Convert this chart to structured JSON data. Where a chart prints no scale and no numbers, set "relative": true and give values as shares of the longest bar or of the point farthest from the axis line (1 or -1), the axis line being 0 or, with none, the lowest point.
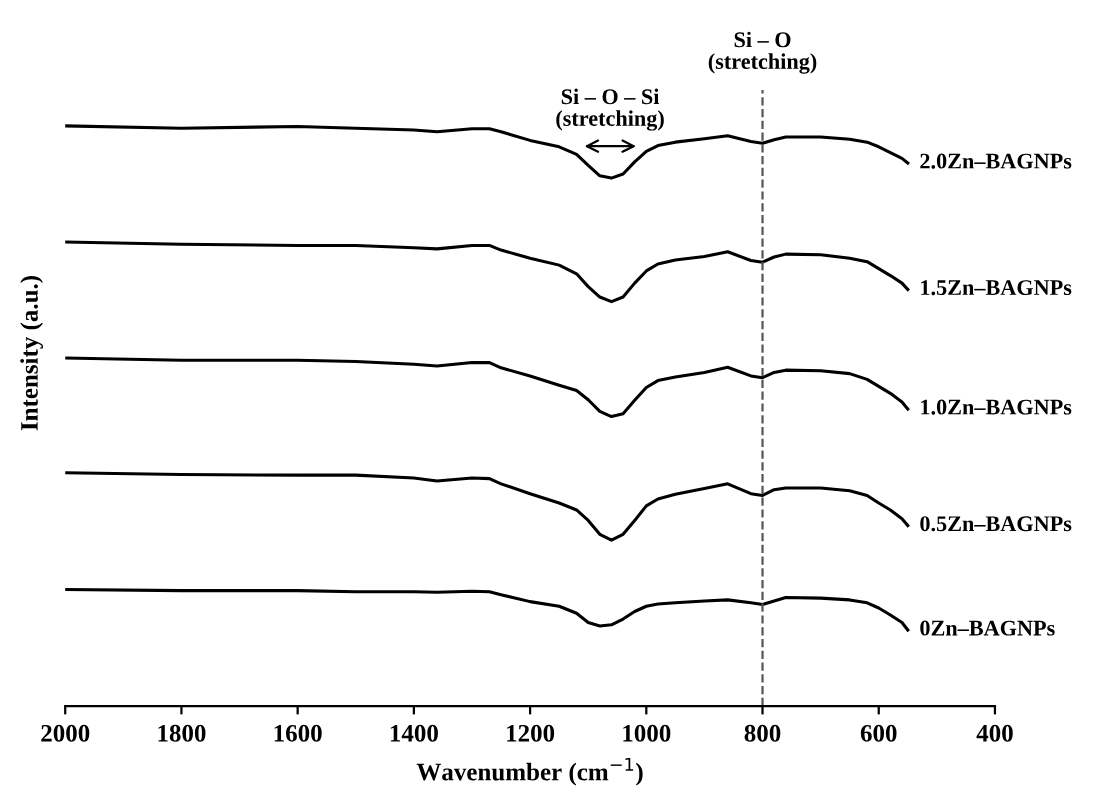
{
  "chart_data": {
    "type": "line",
    "relative": true,
    "xlabel": "Wavenumber (cm$^{−1}$)",
    "ylabel": "Intensity (a.u.)",
    "xlim": [
      2000,
      400
    ],
    "xticks": [
      2000,
      1800,
      1600,
      1400,
      1200,
      1000,
      800,
      600,
      400
    ],
    "grid": false,
    "legend": false,
    "marker": "none",
    "line_style": "solid",
    "x": [
      2000,
      1800,
      1600,
      1500,
      1400,
      1360,
      1300,
      1270,
      1250,
      1200,
      1150,
      1120,
      1100,
      1080,
      1060,
      1040,
      1020,
      1000,
      980,
      950,
      900,
      860,
      820,
      800,
      780,
      760,
      700,
      650,
      620,
      600,
      580,
      560,
      550
    ],
    "series": [
      {
        "name": "2.0Zn–BAGNPs",
        "color": "#000000",
        "values": [
          1.0,
          0.996,
          0.999,
          0.996,
          0.993,
          0.99,
          0.995,
          0.995,
          0.99,
          0.975,
          0.964,
          0.951,
          0.932,
          0.914,
          0.91,
          0.917,
          0.938,
          0.956,
          0.966,
          0.972,
          0.978,
          0.983,
          0.973,
          0.97,
          0.976,
          0.981,
          0.981,
          0.977,
          0.972,
          0.964,
          0.954,
          0.944,
          0.936
        ]
      },
      {
        "name": "1.5Zn–BAGNPs",
        "color": "#000000",
        "values": [
          0.8,
          0.796,
          0.794,
          0.794,
          0.79,
          0.788,
          0.794,
          0.794,
          0.786,
          0.772,
          0.76,
          0.745,
          0.723,
          0.705,
          0.697,
          0.705,
          0.729,
          0.75,
          0.762,
          0.769,
          0.775,
          0.783,
          0.768,
          0.765,
          0.774,
          0.779,
          0.778,
          0.772,
          0.766,
          0.754,
          0.742,
          0.729,
          0.718
        ]
      },
      {
        "name": "1.0Zn–BAGNPs",
        "color": "#000000",
        "values": [
          0.6,
          0.596,
          0.596,
          0.594,
          0.589,
          0.586,
          0.592,
          0.592,
          0.583,
          0.569,
          0.553,
          0.544,
          0.528,
          0.508,
          0.499,
          0.504,
          0.527,
          0.549,
          0.561,
          0.567,
          0.575,
          0.584,
          0.569,
          0.566,
          0.575,
          0.579,
          0.578,
          0.573,
          0.563,
          0.551,
          0.539,
          0.524,
          0.512
        ]
      },
      {
        "name": "0.5Zn–BAGNPs",
        "color": "#000000",
        "values": [
          0.402,
          0.399,
          0.398,
          0.398,
          0.393,
          0.388,
          0.393,
          0.392,
          0.383,
          0.366,
          0.35,
          0.338,
          0.32,
          0.296,
          0.286,
          0.296,
          0.32,
          0.345,
          0.357,
          0.365,
          0.375,
          0.383,
          0.366,
          0.363,
          0.373,
          0.376,
          0.376,
          0.371,
          0.363,
          0.35,
          0.338,
          0.323,
          0.311
        ]
      },
      {
        "name": "0Zn–BAGNPs",
        "color": "#000000",
        "values": [
          0.201,
          0.199,
          0.199,
          0.197,
          0.197,
          0.196,
          0.198,
          0.197,
          0.192,
          0.18,
          0.172,
          0.16,
          0.144,
          0.138,
          0.14,
          0.15,
          0.163,
          0.172,
          0.176,
          0.178,
          0.181,
          0.183,
          0.178,
          0.175,
          0.181,
          0.187,
          0.186,
          0.183,
          0.178,
          0.169,
          0.157,
          0.144,
          0.131
        ]
      }
    ],
    "ref_lines": [
      {
        "axis": "x",
        "value": 800,
        "color": "#555555",
        "line_style": "dashed",
        "label": "Si – O\n(stretching)"
      }
    ],
    "annotations": [
      "Si – O – Si\n(stretching)"
    ]
  }
}
